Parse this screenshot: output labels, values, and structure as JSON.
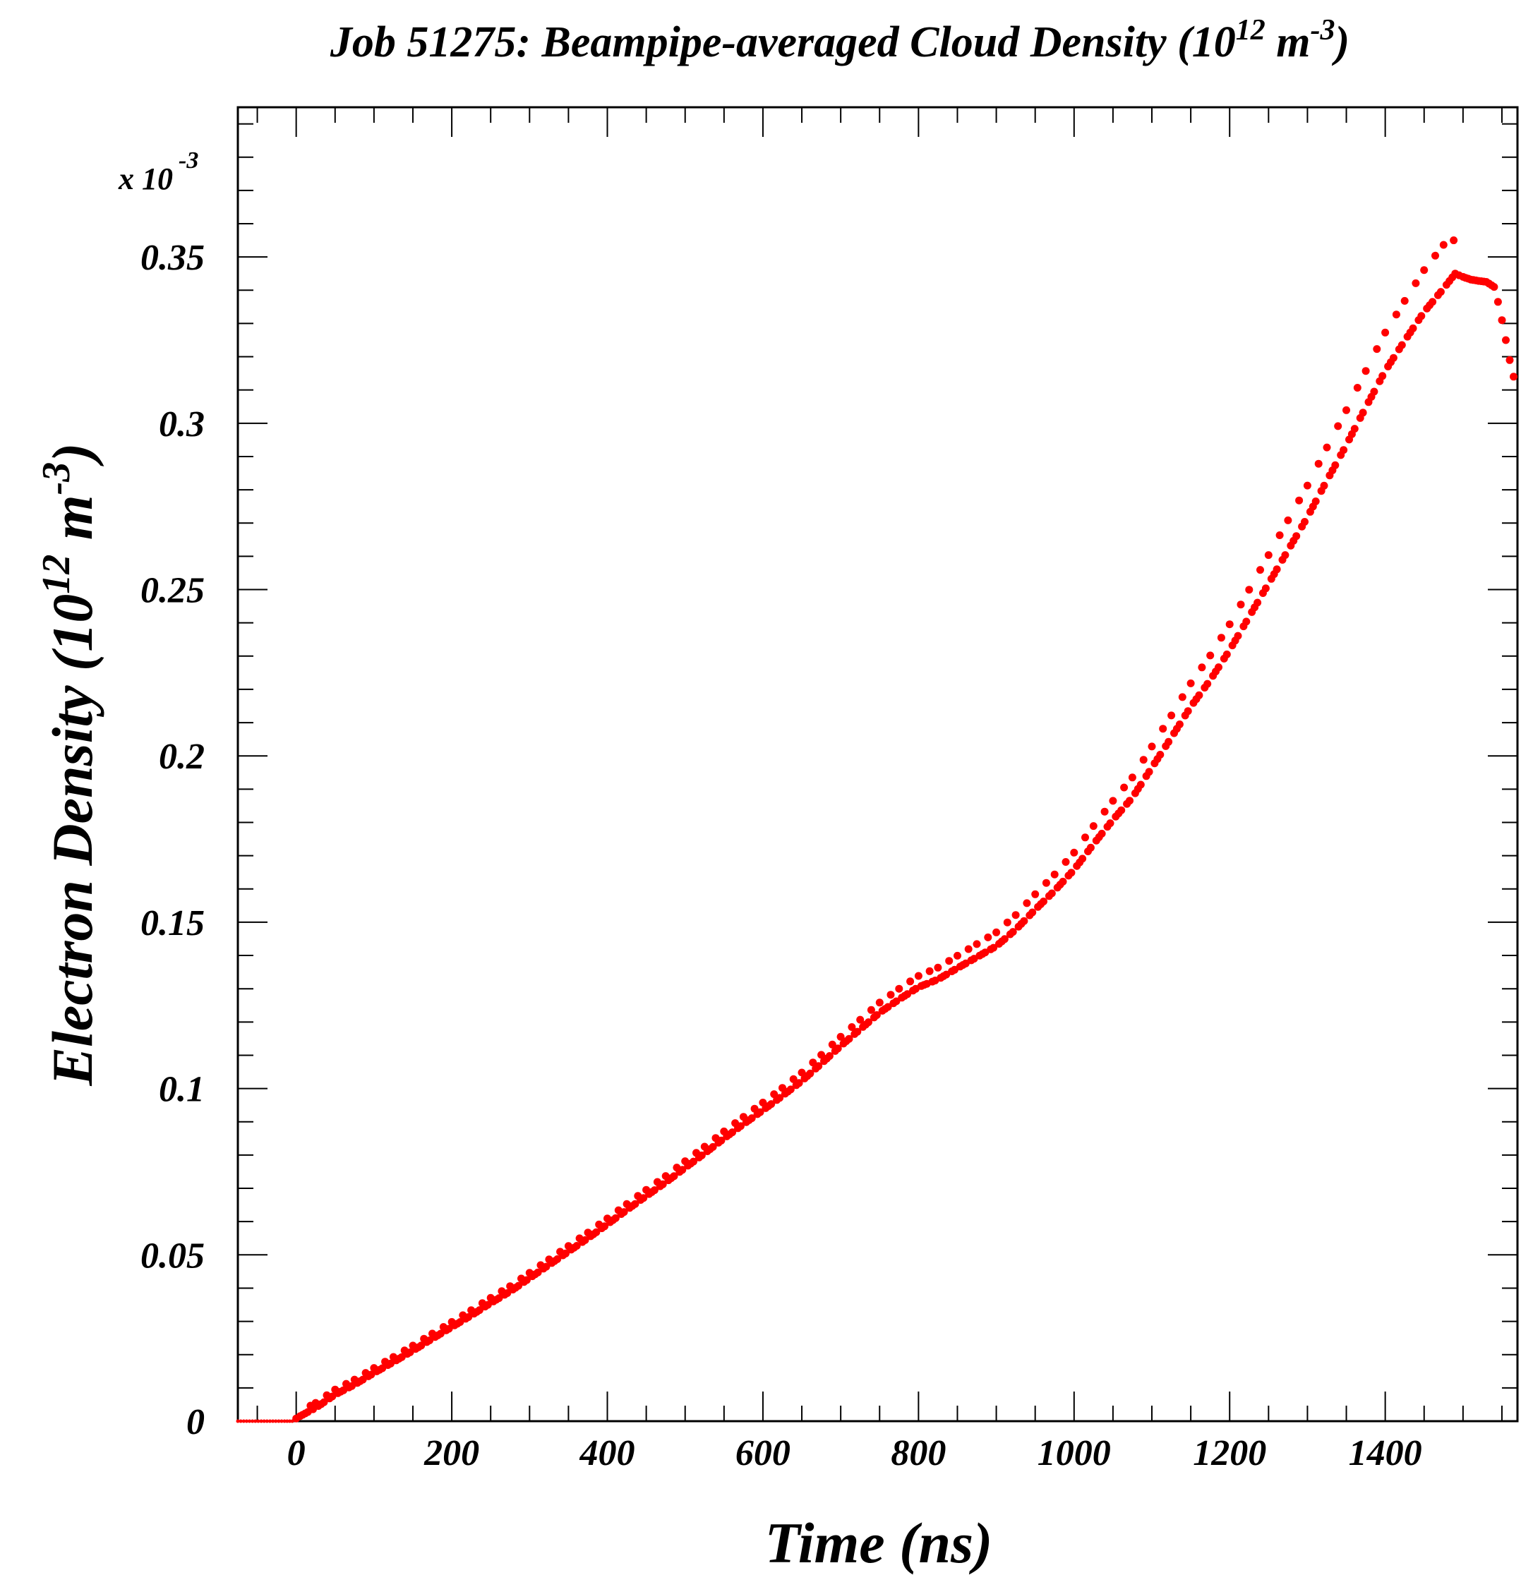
{
  "chart_data": {
    "type": "scatter",
    "title_main": "Job 51275: Beampipe-averaged Cloud Density (10",
    "title_exp1": "12",
    "title_mid": " m",
    "title_exp2": "-3",
    "title_end": ")",
    "xlabel": "Time (ns)",
    "ylabel_main": "Electron Density (10",
    "ylabel_exp1": "12",
    "ylabel_mid": " m",
    "ylabel_exp2": "-3",
    "ylabel_end": ")",
    "y_multiplier_base": "x 10",
    "y_multiplier_exp": "-3",
    "xlim": [
      -75,
      1570
    ],
    "ylim": [
      0,
      0.395
    ],
    "x_ticks": [
      "0",
      "200",
      "400",
      "600",
      "800",
      "1000",
      "1200",
      "1400"
    ],
    "x_tick_values": [
      0,
      200,
      400,
      600,
      800,
      1000,
      1200,
      1400
    ],
    "y_ticks": [
      "0",
      "0.05",
      "0.1",
      "0.15",
      "0.2",
      "0.25",
      "0.3",
      "0.35"
    ],
    "y_tick_values": [
      0,
      0.05,
      0.1,
      0.15,
      0.2,
      0.25,
      0.3,
      0.35
    ],
    "marker_color": "#ff0000",
    "series": [
      {
        "color": "#ff0000",
        "x": [
          -75,
          -60,
          -45,
          -30,
          -15,
          -5,
          0,
          5,
          25,
          50,
          75,
          100,
          125,
          150,
          175,
          200,
          225,
          250,
          275,
          300,
          325,
          350,
          375,
          400,
          425,
          450,
          475,
          500,
          525,
          550,
          575,
          600,
          625,
          650,
          675,
          700,
          725,
          750,
          775,
          800,
          825,
          850,
          875,
          900,
          925,
          950,
          975,
          1000,
          1025,
          1050,
          1075,
          1100,
          1125,
          1150,
          1175,
          1200,
          1225,
          1250,
          1275,
          1300,
          1325,
          1350,
          1375,
          1400,
          1425,
          1450,
          1475,
          1490,
          1495,
          1500,
          1510,
          1520,
          1530,
          1540,
          1545,
          1550,
          1555,
          1560,
          1565,
          1570
        ],
        "y": [
          0,
          0,
          0,
          0,
          0,
          0,
          0.0008,
          0.0015,
          0.004,
          0.008,
          0.011,
          0.0145,
          0.0178,
          0.0212,
          0.0248,
          0.0283,
          0.0318,
          0.0355,
          0.039,
          0.043,
          0.047,
          0.051,
          0.055,
          0.0592,
          0.0635,
          0.0677,
          0.0718,
          0.0762,
          0.0805,
          0.085,
          0.0893,
          0.0935,
          0.0978,
          0.1023,
          0.1075,
          0.1128,
          0.1178,
          0.1228,
          0.1268,
          0.1305,
          0.1328,
          0.1362,
          0.1395,
          0.1428,
          0.1478,
          0.1538,
          0.1595,
          0.1658,
          0.1735,
          0.1808,
          0.1875,
          0.1965,
          0.2055,
          0.2148,
          0.2228,
          0.2318,
          0.2418,
          0.2518,
          0.2618,
          0.2718,
          0.2828,
          0.2935,
          0.3048,
          0.3158,
          0.3248,
          0.3335,
          0.3405,
          0.345,
          0.3445,
          0.344,
          0.3432,
          0.3428,
          0.3425,
          0.341,
          0.3365,
          0.331,
          0.325,
          0.319,
          0.314,
          0.31
        ]
      }
    ]
  }
}
